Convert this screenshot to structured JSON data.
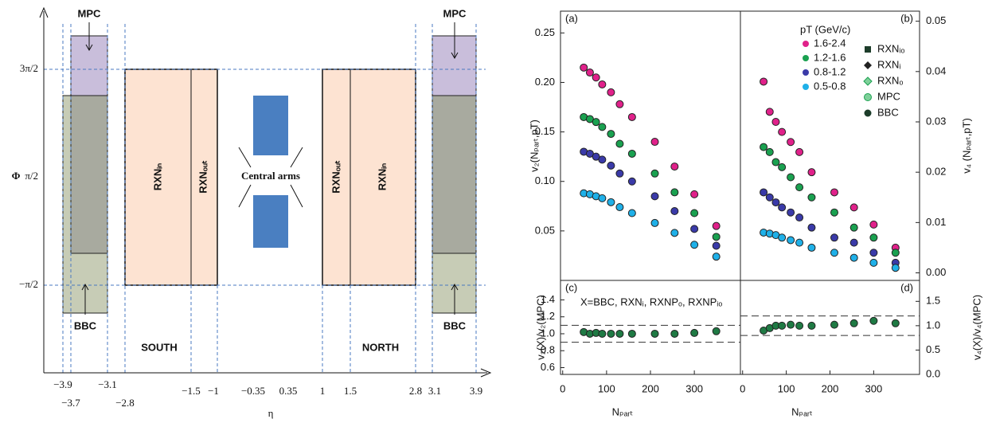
{
  "diagram": {
    "y_label": "Φ",
    "x_label": "η",
    "y_ticks": [
      "3π/2",
      "π/2",
      "−π/2"
    ],
    "x_ticks": [
      "−3.9",
      "−3.7",
      "−3.1",
      "−2.8",
      "−1.5",
      "−1",
      "−0.35",
      "0.35",
      "1",
      "1.5",
      "2.8",
      "3.1",
      "3.9"
    ],
    "labels": [
      "MPC",
      "MPC",
      "BBC",
      "BBC",
      "RXNᵢₙ",
      "RXNₒᵤₜ",
      "RXNₒᵤₜ",
      "RXNᵢₙ",
      "Central arms",
      "SOUTH",
      "NORTH"
    ]
  },
  "chart_data": [
    {
      "type": "scatter",
      "panel_label": "(a)",
      "y_label": "v₂(Nₚₐᵣₜ,pT)",
      "y_side": "left",
      "xlim": [
        -5,
        405
      ],
      "ylim": [
        0,
        0.272
      ],
      "yticks": [
        0.05,
        {
          "value": 0.1,
          "label": "0.10"
        },
        0.15,
        {
          "value": 0.2,
          "label": "0.20"
        },
        0.25
      ],
      "x": [
        48,
        62,
        76,
        90,
        110,
        130,
        158,
        210,
        255,
        300,
        350
      ],
      "series": [
        {
          "color": "#e0218a",
          "values": [
            0.215,
            0.21,
            0.205,
            0.198,
            0.19,
            0.178,
            0.165,
            0.14,
            0.115,
            0.087,
            0.055
          ]
        },
        {
          "color": "#1aa150",
          "values": [
            0.165,
            0.163,
            0.16,
            0.155,
            0.148,
            0.138,
            0.128,
            0.108,
            0.089,
            0.068,
            0.044
          ]
        },
        {
          "color": "#3a3aa8",
          "values": [
            0.13,
            0.128,
            0.125,
            0.122,
            0.116,
            0.108,
            0.1,
            0.085,
            0.07,
            0.052,
            0.035
          ]
        },
        {
          "color": "#1fb0e8",
          "values": [
            0.088,
            0.087,
            0.085,
            0.083,
            0.079,
            0.074,
            0.068,
            0.058,
            0.048,
            0.036,
            0.024
          ]
        }
      ]
    },
    {
      "type": "scatter",
      "panel_label": "(b)",
      "y_label": "v₄ (Nₚₐᵣₜ,pT)",
      "y_side": "right",
      "xlim": [
        -5,
        405
      ],
      "ylim": [
        -0.0015,
        0.052
      ],
      "yticks": [
        {
          "value": 0,
          "label": "0.00"
        },
        0.01,
        0.02,
        0.03,
        0.04,
        0.05
      ],
      "legend_title": "pT (GeV/c)",
      "method_legend": [
        "RXNᵢₒ",
        "RXNᵢ",
        "RXNₒ",
        "MPC",
        "BBC"
      ],
      "x": [
        48,
        62,
        76,
        90,
        110,
        130,
        158,
        210,
        255,
        300,
        350
      ],
      "series": [
        {
          "name": "1.6-2.4",
          "color": "#e0218a",
          "values": [
            0.038,
            0.032,
            0.03,
            0.028,
            0.026,
            0.024,
            0.02,
            0.016,
            0.013,
            0.0096,
            0.005
          ]
        },
        {
          "name": "1.2-1.6",
          "color": "#1aa150",
          "values": [
            0.025,
            0.024,
            0.022,
            0.021,
            0.019,
            0.017,
            0.015,
            0.012,
            0.009,
            0.007,
            0.004
          ]
        },
        {
          "name": "0.8-1.2",
          "color": "#3a3aa8",
          "values": [
            0.016,
            0.015,
            0.014,
            0.013,
            0.012,
            0.011,
            0.009,
            0.007,
            0.006,
            0.004,
            0.002
          ]
        },
        {
          "name": "0.5-0.8",
          "color": "#1fb0e8",
          "values": [
            0.008,
            0.0078,
            0.0075,
            0.007,
            0.0065,
            0.006,
            0.005,
            0.004,
            0.003,
            0.002,
            0.001
          ]
        }
      ]
    },
    {
      "type": "scatter",
      "panel_label": "(c)",
      "y_label": "v₂(X)/v₂(MPC)",
      "x_label": "Nₚₐᵣₜ",
      "y_side": "left",
      "annotation": "X=BBC, RXNᵢ, RXNPₒ, RXNPᵢₒ",
      "xlim": [
        -5,
        405
      ],
      "ylim": [
        0.52,
        1.63
      ],
      "xticks": [
        0,
        100,
        200,
        300
      ],
      "yticks": [
        0.6,
        0.8,
        {
          "value": 1,
          "label": "1.0"
        },
        1.2,
        1.4
      ],
      "hlines": [
        1.1,
        0.9
      ],
      "x": [
        48,
        62,
        76,
        90,
        110,
        130,
        158,
        210,
        255,
        300,
        350
      ],
      "series": [
        {
          "color": "#1f7a44",
          "values": [
            1.02,
            1.0,
            1.01,
            1.0,
            1.0,
            1.0,
            1.0,
            1.0,
            1.0,
            1.01,
            1.03
          ]
        }
      ]
    },
    {
      "type": "scatter",
      "panel_label": "(d)",
      "y_label": "v₄(X)/v₄(MPC)",
      "x_label": "Nₚₐᵣₜ",
      "y_side": "right",
      "xlim": [
        -5,
        405
      ],
      "ylim": [
        0,
        1.93
      ],
      "xticks": [
        0,
        100,
        200,
        300
      ],
      "yticks": [
        {
          "value": 0,
          "label": "0.0"
        },
        0.5,
        {
          "value": 1,
          "label": "1.0"
        },
        1.5
      ],
      "hlines": [
        1.2,
        0.8
      ],
      "x": [
        48,
        62,
        76,
        90,
        110,
        130,
        158,
        210,
        255,
        300,
        350
      ],
      "series": [
        {
          "color": "#1f7a44",
          "values": [
            0.9,
            0.95,
            1.0,
            1.0,
            1.02,
            1.0,
            1.0,
            1.02,
            1.05,
            1.1,
            1.05
          ]
        }
      ]
    }
  ]
}
